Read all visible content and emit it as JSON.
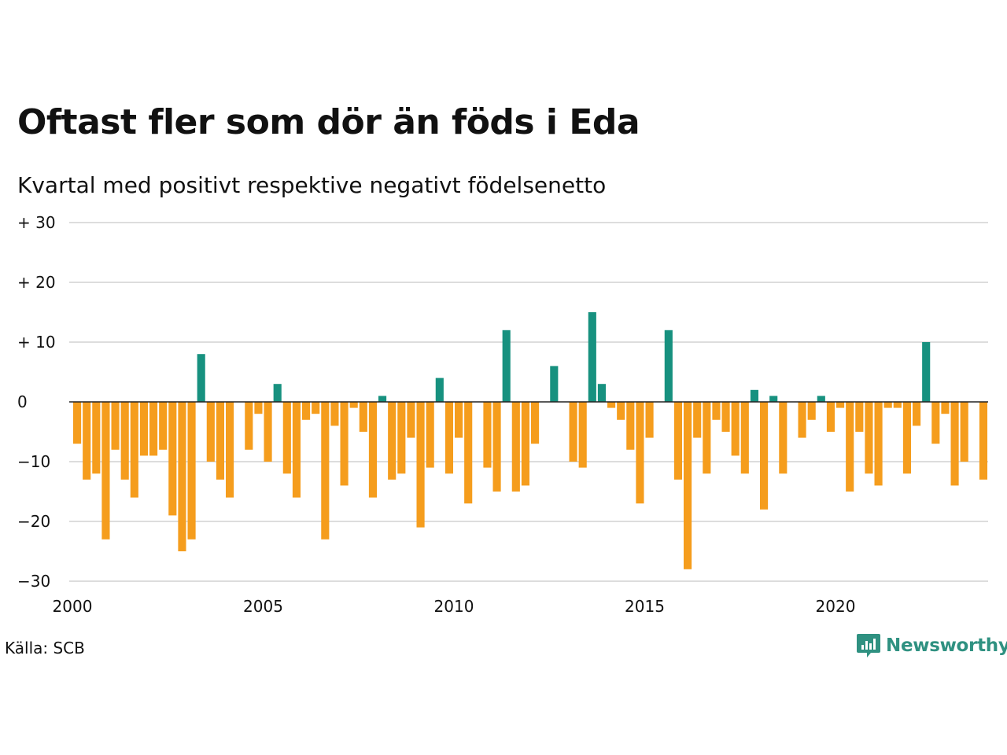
{
  "title": "Oftast fler som dör än föds i Eda",
  "subtitle": "Kvartal med positivt respektive negativt födelsenetto",
  "source": "Källa: SCB",
  "brand": {
    "name": "Newsworthy",
    "icon": "newsworthy-logo-icon",
    "color": "#2f9181"
  },
  "colors": {
    "positive": "#17917f",
    "negative": "#f59d1d",
    "grid": "#dddddd",
    "zero": "#222222"
  },
  "chart_data": {
    "type": "bar",
    "title": "Oftast fler som dör än föds i Eda",
    "subtitle": "Kvartal med positivt respektive negativt födelsenetto",
    "ylim": [
      -30,
      30
    ],
    "yticks": [
      30,
      20,
      10,
      0,
      -10,
      -20,
      -30
    ],
    "ytick_labels": [
      "+ 30",
      "+ 20",
      "+ 10",
      "0",
      "−10",
      "−20",
      "−30"
    ],
    "xlim": [
      2000,
      2024
    ],
    "xticks": [
      2000,
      2005,
      2010,
      2015,
      2020
    ],
    "xtick_labels": [
      "2000",
      "2005",
      "2010",
      "2015",
      "2020"
    ],
    "grid": true,
    "legend": "none",
    "categories": [
      "2000Q1",
      "2000Q2",
      "2000Q3",
      "2000Q4",
      "2001Q1",
      "2001Q2",
      "2001Q3",
      "2001Q4",
      "2002Q1",
      "2002Q2",
      "2002Q3",
      "2002Q4",
      "2003Q1",
      "2003Q2",
      "2003Q3",
      "2003Q4",
      "2004Q1",
      "2004Q2",
      "2004Q3",
      "2004Q4",
      "2005Q1",
      "2005Q2",
      "2005Q3",
      "2005Q4",
      "2006Q1",
      "2006Q2",
      "2006Q3",
      "2006Q4",
      "2007Q1",
      "2007Q2",
      "2007Q3",
      "2007Q4",
      "2008Q1",
      "2008Q2",
      "2008Q3",
      "2008Q4",
      "2009Q1",
      "2009Q2",
      "2009Q3",
      "2009Q4",
      "2010Q1",
      "2010Q2",
      "2010Q3",
      "2010Q4",
      "2011Q1",
      "2011Q2",
      "2011Q3",
      "2011Q4",
      "2012Q1",
      "2012Q2",
      "2012Q3",
      "2012Q4",
      "2013Q1",
      "2013Q2",
      "2013Q3",
      "2013Q4",
      "2014Q1",
      "2014Q2",
      "2014Q3",
      "2014Q4",
      "2015Q1",
      "2015Q2",
      "2015Q3",
      "2015Q4",
      "2016Q1",
      "2016Q2",
      "2016Q3",
      "2016Q4",
      "2017Q1",
      "2017Q2",
      "2017Q3",
      "2017Q4",
      "2018Q1",
      "2018Q2",
      "2018Q3",
      "2018Q4",
      "2019Q1",
      "2019Q2",
      "2019Q3",
      "2019Q4",
      "2020Q1",
      "2020Q2",
      "2020Q3",
      "2020Q4",
      "2021Q1",
      "2021Q2",
      "2021Q3",
      "2021Q4",
      "2022Q1",
      "2022Q2",
      "2022Q3",
      "2022Q4",
      "2023Q1",
      "2023Q2",
      "2023Q3",
      "2023Q4"
    ],
    "values": [
      -7,
      -13,
      -12,
      -23,
      -8,
      -13,
      -16,
      -9,
      -9,
      -8,
      -19,
      -25,
      -23,
      8,
      -10,
      -13,
      -16,
      0,
      -8,
      -2,
      -10,
      3,
      -12,
      -16,
      -3,
      -2,
      -23,
      -4,
      -14,
      -1,
      -5,
      -16,
      1,
      -13,
      -12,
      -6,
      -21,
      -11,
      4,
      -12,
      -6,
      -17,
      0,
      -11,
      -15,
      12,
      -15,
      -14,
      -7,
      0,
      6,
      0,
      -10,
      -11,
      15,
      3,
      -1,
      -3,
      -8,
      -17,
      -6,
      0,
      12,
      -13,
      -28,
      -6,
      -12,
      -3,
      -5,
      -9,
      -12,
      2,
      -18,
      1,
      -12,
      0,
      -6,
      -3,
      1,
      -5,
      -1,
      -15,
      -5,
      -12,
      -14,
      -1,
      -1,
      -12,
      -4,
      10,
      -7,
      -2,
      -14,
      -10,
      0,
      -13
    ]
  }
}
